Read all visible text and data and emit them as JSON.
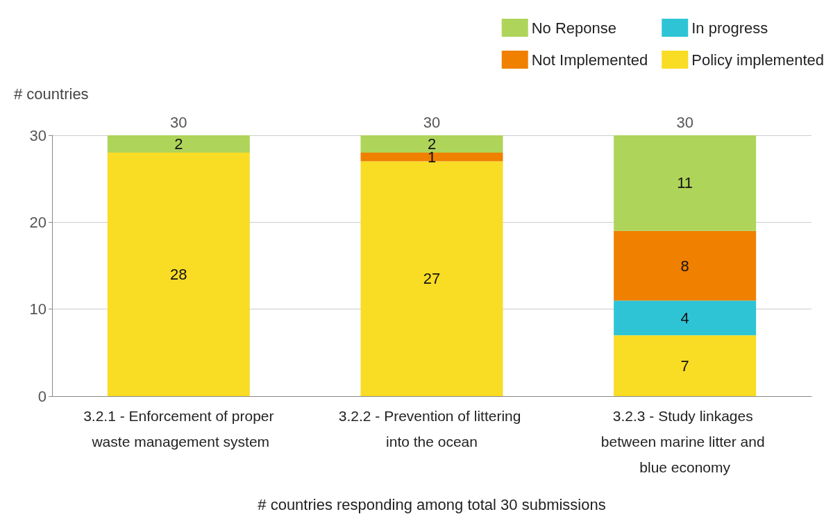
{
  "chart_data": {
    "type": "bar",
    "stacked": true,
    "categories": [
      "3.2.1 - Enforcement of proper waste management system",
      "3.2.2 - Prevention of littering into the ocean",
      "3.2.3 - Study linkages between marine litter and blue economy"
    ],
    "series": [
      {
        "name": "Policy implemented",
        "color": "#f9dc24",
        "values": [
          28,
          27,
          7
        ],
        "value_labels": [
          "28",
          "27",
          "7"
        ]
      },
      {
        "name": "In progress",
        "color": "#2ec4d6",
        "values": [
          0,
          0,
          4
        ],
        "value_labels": [
          null,
          null,
          "4"
        ]
      },
      {
        "name": "Not Implemented",
        "color": "#f08000",
        "values": [
          0,
          1,
          8
        ],
        "value_labels": [
          null,
          "1",
          "8"
        ]
      },
      {
        "name": "No Reponse",
        "color": "#afd45a",
        "values": [
          2,
          2,
          11
        ],
        "value_labels": [
          "2",
          "2",
          "11"
        ]
      }
    ],
    "totals": [
      "30",
      "30",
      "30"
    ],
    "ylabel": "# countries",
    "xlabel": "# countries responding among total 30 submissions",
    "ylim": [
      0,
      30
    ],
    "yticks": [
      0,
      10,
      20,
      30
    ],
    "grid": "y",
    "legend": "top right"
  }
}
